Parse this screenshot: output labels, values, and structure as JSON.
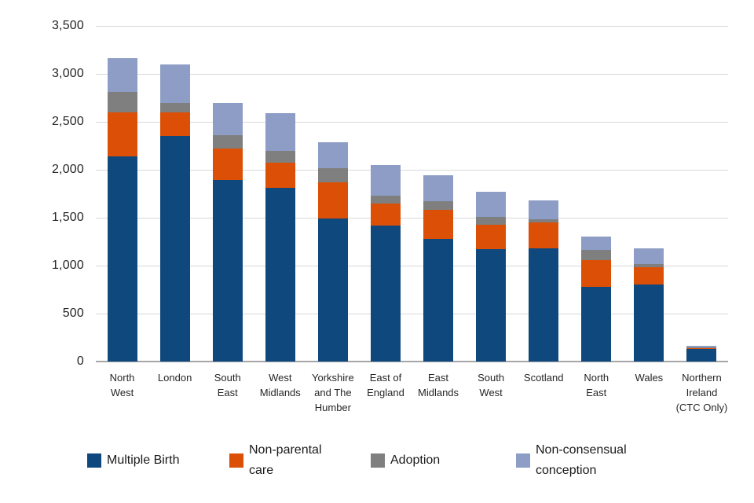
{
  "chart_data": {
    "type": "bar",
    "stacked": true,
    "title": "",
    "xlabel": "",
    "ylabel": "",
    "ylim": [
      0,
      3500
    ],
    "ytick_step": 500,
    "yticks": [
      "0",
      "500",
      "1,000",
      "1,500",
      "2,000",
      "2,500",
      "3,000",
      "3,500"
    ],
    "grid": true,
    "legend_position": "bottom",
    "categories": [
      {
        "label": "North West",
        "lines": [
          "North",
          "West"
        ]
      },
      {
        "label": "London",
        "lines": [
          "London"
        ]
      },
      {
        "label": "South East",
        "lines": [
          "South",
          "East"
        ]
      },
      {
        "label": "West Midlands",
        "lines": [
          "West",
          "Midlands"
        ]
      },
      {
        "label": "Yorkshire and The Humber",
        "lines": [
          "Yorkshire",
          "and The",
          "Humber"
        ]
      },
      {
        "label": "East of England",
        "lines": [
          "East of",
          "England"
        ]
      },
      {
        "label": "East Midlands",
        "lines": [
          "East",
          "Midlands"
        ]
      },
      {
        "label": "South West",
        "lines": [
          "South",
          "West"
        ]
      },
      {
        "label": "Scotland",
        "lines": [
          "Scotland"
        ]
      },
      {
        "label": "North East",
        "lines": [
          "North",
          "East"
        ]
      },
      {
        "label": "Wales",
        "lines": [
          "Wales"
        ]
      },
      {
        "label": "Northern Ireland (CTC Only)",
        "lines": [
          "Northern",
          "Ireland",
          "(CTC Only)"
        ]
      }
    ],
    "series": [
      {
        "name": "Multiple Birth",
        "legend_lines": [
          "Multiple Birth"
        ],
        "color": "#0e487d",
        "values": [
          2140,
          2350,
          1890,
          1810,
          1490,
          1420,
          1280,
          1170,
          1180,
          780,
          800,
          130
        ]
      },
      {
        "name": "Non-parental care",
        "legend_lines": [
          "Non-parental",
          "care"
        ],
        "color": "#dc4f06",
        "values": [
          460,
          250,
          330,
          260,
          380,
          230,
          300,
          260,
          270,
          280,
          180,
          15
        ]
      },
      {
        "name": "Adoption",
        "legend_lines": [
          "Adoption"
        ],
        "color": "#7f7f7f",
        "values": [
          210,
          100,
          140,
          130,
          150,
          80,
          90,
          80,
          30,
          100,
          40,
          5
        ]
      },
      {
        "name": "Non-consensual conception",
        "legend_lines": [
          "Non-consensual",
          "conception"
        ],
        "color": "#8e9dc5",
        "values": [
          350,
          400,
          340,
          390,
          270,
          320,
          270,
          260,
          200,
          140,
          160,
          15
        ]
      }
    ]
  }
}
